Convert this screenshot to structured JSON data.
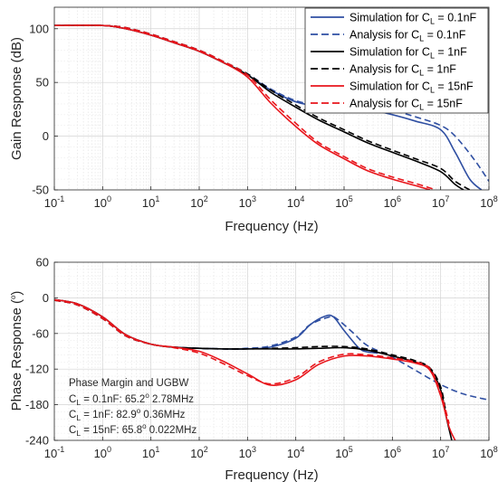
{
  "chart_data": [
    {
      "type": "line",
      "xlabel": "Frequency (Hz)",
      "ylabel": "Gain Response (dB)",
      "xscale": "log",
      "xlim": [
        0.1,
        100000000
      ],
      "ylim": [
        -50,
        120
      ],
      "yticks": [
        -50,
        0,
        50,
        100
      ],
      "xticks": [
        {
          "base": "10",
          "exp": "-1"
        },
        {
          "base": "10",
          "exp": "0"
        },
        {
          "base": "10",
          "exp": "1"
        },
        {
          "base": "10",
          "exp": "2"
        },
        {
          "base": "10",
          "exp": "3"
        },
        {
          "base": "10",
          "exp": "4"
        },
        {
          "base": "10",
          "exp": "5"
        },
        {
          "base": "10",
          "exp": "6"
        },
        {
          "base": "10",
          "exp": "7"
        },
        {
          "base": "10",
          "exp": "8"
        }
      ],
      "grid": true,
      "legend": {
        "placement": "top-right",
        "entries": [
          {
            "prefix": "Simulation for C",
            "sub": "L",
            "suffix": " = 0.1nF",
            "color": "#2f4fa2",
            "dash": "solid"
          },
          {
            "prefix": "Analysis for C",
            "sub": "L",
            "suffix": " = 0.1nF",
            "color": "#2f4fa2",
            "dash": "dashed"
          },
          {
            "prefix": "Simulation for C",
            "sub": "L",
            "suffix": " = 1nF",
            "color": "#000000",
            "dash": "solid"
          },
          {
            "prefix": "Analysis for C",
            "sub": "L",
            "suffix": " = 1nF",
            "color": "#000000",
            "dash": "dashed"
          },
          {
            "prefix": "Simulation for C",
            "sub": "L",
            "suffix": " = 15nF",
            "color": "#e8151b",
            "dash": "solid"
          },
          {
            "prefix": "Analysis for C",
            "sub": "L",
            "suffix": " = 15nF",
            "color": "#e8151b",
            "dash": "dashed"
          }
        ]
      },
      "series": [
        {
          "color": "#2f4fa2",
          "dash": "solid",
          "x": [
            0.1,
            1,
            3,
            10,
            30,
            100,
            300,
            1000,
            3000,
            10000,
            30000,
            100000,
            300000,
            1000000,
            3000000,
            10000000,
            20000000,
            40000000,
            70000000
          ],
          "y": [
            103,
            103,
            100,
            94,
            87,
            79,
            69,
            57,
            43,
            32,
            28,
            27,
            25,
            20,
            14,
            6,
            -15,
            -40,
            -50
          ]
        },
        {
          "color": "#2f4fa2",
          "dash": "dashed",
          "x": [
            0.1,
            1,
            3,
            10,
            30,
            100,
            300,
            1000,
            3000,
            10000,
            30000,
            100000,
            300000,
            1000000,
            3000000,
            10000000,
            20000000,
            50000000,
            100000000
          ],
          "y": [
            103,
            103,
            101,
            95,
            88,
            80,
            70,
            58,
            44,
            33,
            29,
            28,
            27,
            24,
            18,
            10,
            0,
            -22,
            -42
          ]
        },
        {
          "color": "#000000",
          "dash": "solid",
          "x": [
            0.1,
            1,
            3,
            10,
            30,
            100,
            300,
            1000,
            3000,
            10000,
            30000,
            100000,
            300000,
            1000000,
            3000000,
            10000000,
            20000000,
            30000000
          ],
          "y": [
            103,
            103,
            100,
            94,
            87,
            79,
            69,
            57,
            41,
            27,
            15,
            4,
            -6,
            -15,
            -23,
            -33,
            -45,
            -50
          ]
        },
        {
          "color": "#000000",
          "dash": "dashed",
          "x": [
            0.1,
            1,
            3,
            10,
            30,
            100,
            300,
            1000,
            3000,
            10000,
            30000,
            100000,
            300000,
            1000000,
            3000000,
            10000000,
            20000000,
            40000000
          ],
          "y": [
            103,
            103,
            101,
            95,
            88,
            80,
            70,
            58,
            43,
            29,
            17,
            6,
            -4,
            -13,
            -21,
            -30,
            -42,
            -50
          ]
        },
        {
          "color": "#e8151b",
          "dash": "solid",
          "x": [
            0.1,
            1,
            3,
            10,
            30,
            100,
            300,
            1000,
            3000,
            10000,
            30000,
            100000,
            300000,
            1000000,
            3000000,
            6000000
          ],
          "y": [
            103,
            103,
            100,
            94,
            87,
            79,
            69,
            55,
            31,
            9,
            -8,
            -21,
            -32,
            -40,
            -46,
            -50
          ]
        },
        {
          "color": "#e8151b",
          "dash": "dashed",
          "x": [
            0.1,
            1,
            3,
            10,
            30,
            100,
            300,
            1000,
            3000,
            10000,
            30000,
            100000,
            300000,
            1000000,
            3000000,
            8000000
          ],
          "y": [
            103,
            103,
            101,
            95,
            88,
            80,
            70,
            57,
            34,
            12,
            -6,
            -19,
            -30,
            -38,
            -44,
            -50
          ]
        }
      ]
    },
    {
      "type": "line",
      "xlabel": "Frequency (Hz)",
      "ylabel": "Phase Response (",
      "ylabel_sup": "o",
      "ylabel_end": ")",
      "xscale": "log",
      "xlim": [
        0.1,
        100000000
      ],
      "ylim": [
        -240,
        60
      ],
      "yticks": [
        -240,
        -180,
        -120,
        -60,
        0,
        60
      ],
      "xticks": [
        {
          "base": "10",
          "exp": "-1"
        },
        {
          "base": "10",
          "exp": "0"
        },
        {
          "base": "10",
          "exp": "1"
        },
        {
          "base": "10",
          "exp": "2"
        },
        {
          "base": "10",
          "exp": "3"
        },
        {
          "base": "10",
          "exp": "4"
        },
        {
          "base": "10",
          "exp": "5"
        },
        {
          "base": "10",
          "exp": "6"
        },
        {
          "base": "10",
          "exp": "7"
        },
        {
          "base": "10",
          "exp": "8"
        }
      ],
      "grid": true,
      "annotation": {
        "title": "Phase Margin  and  UGBW",
        "lines": [
          {
            "pre": "C",
            "sub": "L",
            "mid": " = 0.1nF: 65.2",
            "sup": "o",
            "post": " 2.78MHz"
          },
          {
            "pre": "C",
            "sub": "L",
            "mid": " = 1nF: 82.9",
            "sup": "o",
            "post": "  0.36MHz"
          },
          {
            "pre": "C",
            "sub": "L",
            "mid": " = 15nF: 65.8",
            "sup": "o",
            "post": " 0.022MHz"
          }
        ]
      },
      "series": [
        {
          "color": "#2f4fa2",
          "dash": "solid",
          "x": [
            0.1,
            0.3,
            1,
            3,
            10,
            30,
            100,
            300,
            1000,
            3000,
            10000,
            20000,
            40000,
            60000,
            100000,
            200000,
            300000,
            500000
          ],
          "y": [
            -3,
            -10,
            -32,
            -62,
            -78,
            -83,
            -85,
            -86,
            -86,
            -83,
            -68,
            -45,
            -31,
            -32,
            -55,
            -84,
            -91,
            -93
          ]
        },
        {
          "color": "#2f4fa2",
          "dash": "dashed",
          "x": [
            0.1,
            0.3,
            1,
            3,
            10,
            30,
            100,
            300,
            1000,
            3000,
            10000,
            20000,
            50000,
            70000,
            150000,
            300000,
            1000000,
            3000000,
            10000000,
            30000000,
            100000000
          ],
          "y": [
            -4,
            -12,
            -35,
            -64,
            -78,
            -83,
            -85,
            -86,
            -85,
            -81,
            -66,
            -45,
            -32,
            -35,
            -58,
            -80,
            -100,
            -122,
            -146,
            -162,
            -172
          ]
        },
        {
          "color": "#000000",
          "dash": "solid",
          "x": [
            0.1,
            0.3,
            1,
            3,
            10,
            30,
            100,
            300,
            1000,
            3000,
            10000,
            30000,
            100000,
            300000,
            1000000,
            3000000,
            6000000,
            10000000,
            13000000,
            17000000
          ],
          "y": [
            -3,
            -10,
            -32,
            -62,
            -78,
            -83,
            -85,
            -86,
            -86,
            -86,
            -86,
            -85,
            -84,
            -88,
            -98,
            -108,
            -120,
            -155,
            -200,
            -240
          ]
        },
        {
          "color": "#000000",
          "dash": "dashed",
          "x": [
            0.1,
            0.3,
            1,
            3,
            10,
            30,
            100,
            300,
            1000,
            3000,
            10000,
            30000,
            100000,
            300000,
            1000000,
            3000000,
            6000000,
            10000000,
            13000000
          ],
          "y": [
            -4,
            -12,
            -35,
            -64,
            -78,
            -83,
            -85,
            -86,
            -86,
            -85,
            -84,
            -82,
            -82,
            -86,
            -96,
            -106,
            -118,
            -150,
            -195
          ]
        },
        {
          "color": "#e8151b",
          "dash": "solid",
          "x": [
            0.1,
            0.3,
            1,
            3,
            10,
            30,
            100,
            300,
            1000,
            3000,
            10000,
            30000,
            100000,
            300000,
            1000000,
            3000000,
            6000000,
            10000000,
            15000000,
            20000000
          ],
          "y": [
            -3,
            -10,
            -32,
            -62,
            -78,
            -83,
            -90,
            -106,
            -128,
            -147,
            -138,
            -112,
            -98,
            -98,
            -103,
            -110,
            -122,
            -165,
            -218,
            -240
          ]
        },
        {
          "color": "#e8151b",
          "dash": "dashed",
          "x": [
            0.1,
            0.3,
            1,
            3,
            10,
            30,
            100,
            300,
            1000,
            3000,
            10000,
            30000,
            100000,
            300000,
            1000000,
            3000000,
            6000000,
            10000000,
            15000000
          ],
          "y": [
            -4,
            -12,
            -35,
            -64,
            -78,
            -84,
            -93,
            -110,
            -131,
            -145,
            -134,
            -108,
            -95,
            -96,
            -101,
            -108,
            -119,
            -160,
            -212
          ]
        }
      ]
    }
  ]
}
